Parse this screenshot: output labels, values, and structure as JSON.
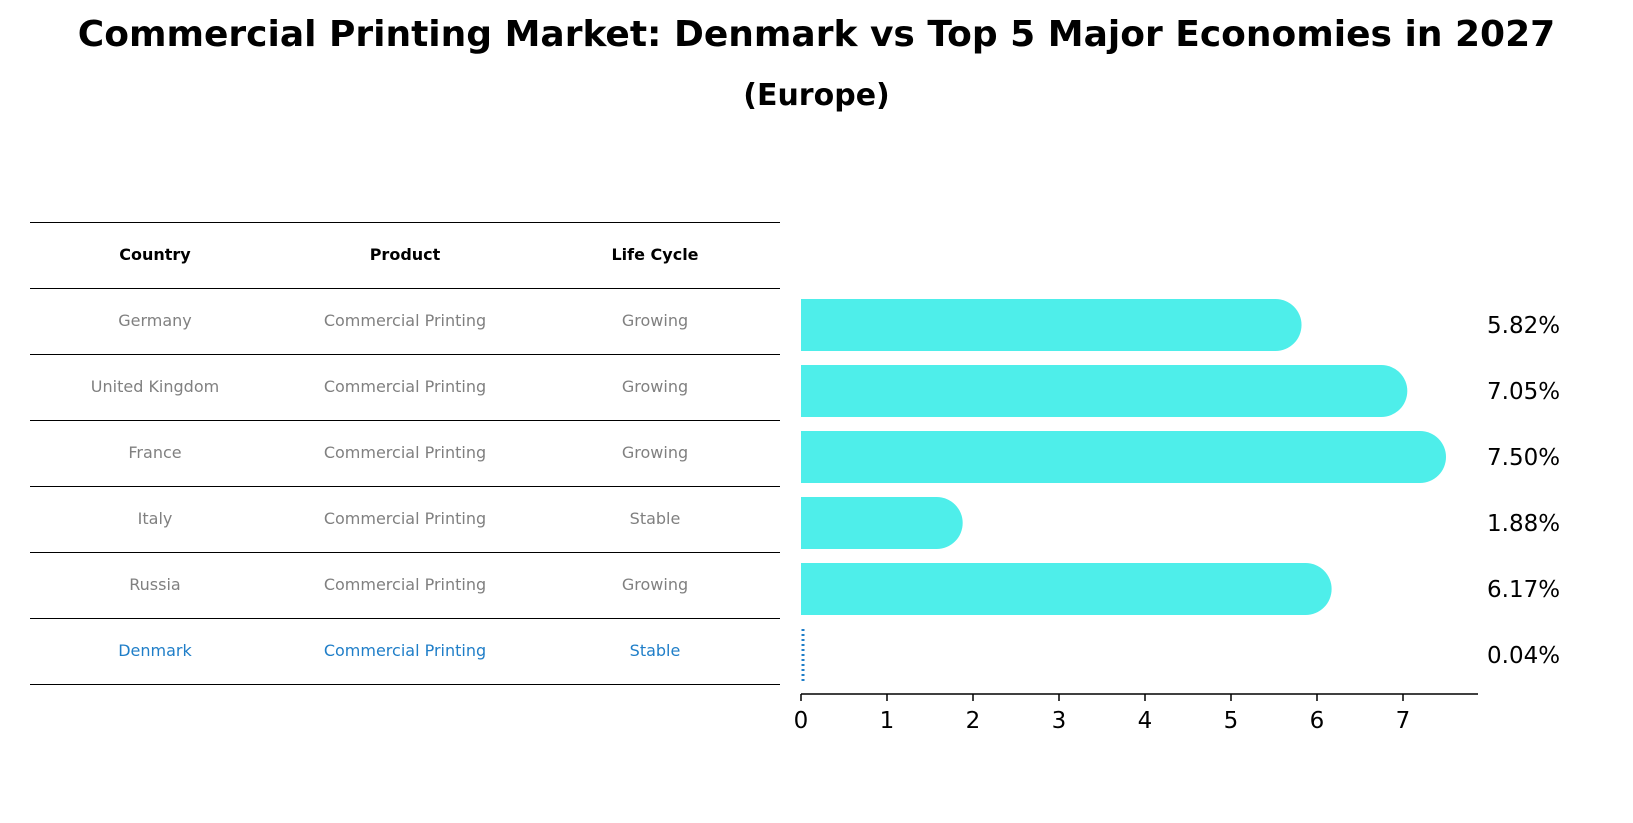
{
  "title": "Commercial Printing Market: Denmark vs Top 5 Major Economies in 2027",
  "subtitle": "(Europe)",
  "table": {
    "headers": [
      "Country",
      "Product",
      "Life Cycle"
    ],
    "rows": [
      {
        "country": "Germany",
        "product": "Commercial Printing",
        "life_cycle": "Growing"
      },
      {
        "country": "United Kingdom",
        "product": "Commercial Printing",
        "life_cycle": "Growing"
      },
      {
        "country": "France",
        "product": "Commercial Printing",
        "life_cycle": "Growing"
      },
      {
        "country": "Italy",
        "product": "Commercial Printing",
        "life_cycle": "Stable"
      },
      {
        "country": "Russia",
        "product": "Commercial Printing",
        "life_cycle": "Growing"
      },
      {
        "country": "Denmark",
        "product": "Commercial Printing",
        "life_cycle": "Stable"
      }
    ]
  },
  "colors": {
    "bar": "#4eeeea",
    "highlight": "#1f7ec8",
    "row_text": "#808080"
  },
  "chart_data": {
    "type": "bar",
    "orientation": "horizontal",
    "categories": [
      "Germany",
      "United Kingdom",
      "France",
      "Italy",
      "Russia",
      "Denmark"
    ],
    "values": [
      5.82,
      7.05,
      7.5,
      1.88,
      6.17,
      0.04
    ],
    "value_labels": [
      "5.82%",
      "7.05%",
      "7.50%",
      "1.88%",
      "6.17%",
      "0.04%"
    ],
    "xticks": [
      "0",
      "1",
      "2",
      "3",
      "4",
      "5",
      "6",
      "7"
    ],
    "xlim": [
      0,
      7.85
    ],
    "highlight_category": "Denmark",
    "grid": false
  }
}
